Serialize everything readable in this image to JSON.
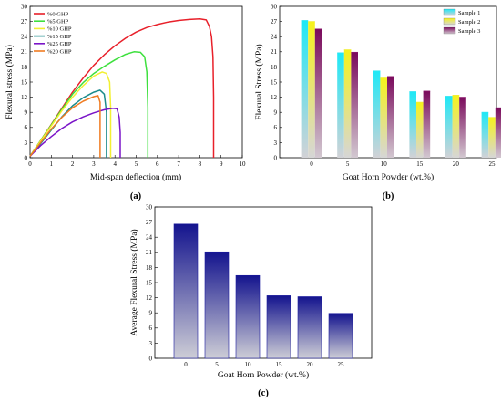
{
  "panel_labels": [
    "(a)",
    "(b)",
    "(c)"
  ],
  "chart_data": [
    {
      "type": "line",
      "xlabel": "Mid-span deflection (mm)",
      "ylabel": "Flexural stress (MPa)",
      "xlim": [
        0,
        10
      ],
      "ylim": [
        0,
        30
      ],
      "xticks": [
        "0",
        "1",
        "2",
        "3",
        "4",
        "5",
        "6",
        "7",
        "8",
        "9",
        "10"
      ],
      "yticks": [
        "0",
        "3",
        "6",
        "9",
        "12",
        "15",
        "18",
        "21",
        "24",
        "27",
        "30"
      ],
      "legend_position": "top-left",
      "series": [
        {
          "name": "%0 GHP",
          "color": "#e8202a",
          "points": [
            [
              0.0,
              0.3
            ],
            [
              0.5,
              3.4
            ],
            [
              1.0,
              6.6
            ],
            [
              1.5,
              9.8
            ],
            [
              2.0,
              13.0
            ],
            [
              2.5,
              15.8
            ],
            [
              3.0,
              18.3
            ],
            [
              3.5,
              20.4
            ],
            [
              4.0,
              22.2
            ],
            [
              4.5,
              23.7
            ],
            [
              5.0,
              24.9
            ],
            [
              5.5,
              25.8
            ],
            [
              6.0,
              26.4
            ],
            [
              6.5,
              26.9
            ],
            [
              7.0,
              27.2
            ],
            [
              7.5,
              27.4
            ],
            [
              8.0,
              27.5
            ],
            [
              8.3,
              27.3
            ],
            [
              8.45,
              26.0
            ],
            [
              8.55,
              24.0
            ],
            [
              8.62,
              20.0
            ],
            [
              8.65,
              12.0
            ],
            [
              8.65,
              0.0
            ]
          ]
        },
        {
          "name": "%5 GHP",
          "color": "#3ee03e",
          "points": [
            [
              0.0,
              0.3
            ],
            [
              0.5,
              3.4
            ],
            [
              1.0,
              6.5
            ],
            [
              1.5,
              9.6
            ],
            [
              2.0,
              12.6
            ],
            [
              2.5,
              14.9
            ],
            [
              3.0,
              16.7
            ],
            [
              3.5,
              18.1
            ],
            [
              4.0,
              19.4
            ],
            [
              4.5,
              20.5
            ],
            [
              4.9,
              21.0
            ],
            [
              5.2,
              20.9
            ],
            [
              5.4,
              20.0
            ],
            [
              5.5,
              17.0
            ],
            [
              5.55,
              10.0
            ],
            [
              5.55,
              0.0
            ]
          ]
        },
        {
          "name": "%10 GHP",
          "color": "#f2f032",
          "points": [
            [
              0.0,
              0.3
            ],
            [
              0.5,
              3.3
            ],
            [
              1.0,
              6.3
            ],
            [
              1.5,
              9.3
            ],
            [
              2.0,
              12.0
            ],
            [
              2.5,
              14.3
            ],
            [
              3.0,
              16.2
            ],
            [
              3.4,
              17.0
            ],
            [
              3.6,
              16.7
            ],
            [
              3.75,
              15.0
            ],
            [
              3.8,
              10.0
            ],
            [
              3.8,
              0.0
            ]
          ]
        },
        {
          "name": "%15 GHP",
          "color": "#1c8c8c",
          "points": [
            [
              0.0,
              0.3
            ],
            [
              0.5,
              2.8
            ],
            [
              1.0,
              5.5
            ],
            [
              1.5,
              8.1
            ],
            [
              2.0,
              10.3
            ],
            [
              2.5,
              11.9
            ],
            [
              3.0,
              13.0
            ],
            [
              3.3,
              13.4
            ],
            [
              3.5,
              12.6
            ],
            [
              3.6,
              9.0
            ],
            [
              3.6,
              0.0
            ]
          ]
        },
        {
          "name": "%25 GHP",
          "color": "#7a14c8",
          "points": [
            [
              0.0,
              0.3
            ],
            [
              0.5,
              2.4
            ],
            [
              1.0,
              4.2
            ],
            [
              1.5,
              5.8
            ],
            [
              2.0,
              7.1
            ],
            [
              2.5,
              8.1
            ],
            [
              3.0,
              8.9
            ],
            [
              3.5,
              9.5
            ],
            [
              3.9,
              9.8
            ],
            [
              4.1,
              9.7
            ],
            [
              4.2,
              8.0
            ],
            [
              4.25,
              5.0
            ],
            [
              4.25,
              0.0
            ]
          ]
        },
        {
          "name": "%20 GHP",
          "color": "#f07c22",
          "points": [
            [
              0.0,
              0.3
            ],
            [
              0.5,
              3.0
            ],
            [
              1.0,
              5.7
            ],
            [
              1.5,
              8.0
            ],
            [
              2.0,
              9.9
            ],
            [
              2.5,
              11.2
            ],
            [
              3.0,
              12.1
            ],
            [
              3.2,
              12.3
            ],
            [
              3.3,
              11.0
            ],
            [
              3.3,
              0.0
            ]
          ]
        }
      ]
    },
    {
      "type": "bar",
      "xlabel": "Goat Horn Powder (wt.%)",
      "ylabel": "Flexural Stress (MPa)",
      "ylim": [
        0,
        30
      ],
      "yticks": [
        "0",
        "3",
        "6",
        "9",
        "12",
        "15",
        "18",
        "21",
        "24",
        "27",
        "30"
      ],
      "categories": [
        "0",
        "5",
        "10",
        "15",
        "20",
        "25"
      ],
      "legend_position": "top-right",
      "series": [
        {
          "name": "Sample 1",
          "color": "#33e6f2",
          "values": [
            27.2,
            20.8,
            17.2,
            13.1,
            12.2,
            9.0
          ]
        },
        {
          "name": "Sample 2",
          "color": "#f2ef3a",
          "values": [
            27.0,
            21.4,
            15.8,
            11.0,
            12.4,
            8.0
          ]
        },
        {
          "name": "Sample 3",
          "color": "#8c1a6e",
          "values": [
            25.5,
            20.9,
            16.1,
            13.2,
            12.0,
            9.9
          ]
        }
      ]
    },
    {
      "type": "bar",
      "xlabel": "Goat Horn Powder (wt.%)",
      "ylabel": "Average Flexural Stress (MPa)",
      "ylim": [
        0,
        30
      ],
      "yticks": [
        "0",
        "3",
        "6",
        "9",
        "12",
        "15",
        "18",
        "21",
        "24",
        "27",
        "30"
      ],
      "categories": [
        "0",
        "5",
        "10",
        "15",
        "20",
        "25"
      ],
      "series": [
        {
          "color": "#1c1c9e",
          "values": [
            26.6,
            21.1,
            16.4,
            12.4,
            12.2,
            8.9
          ]
        }
      ]
    }
  ]
}
